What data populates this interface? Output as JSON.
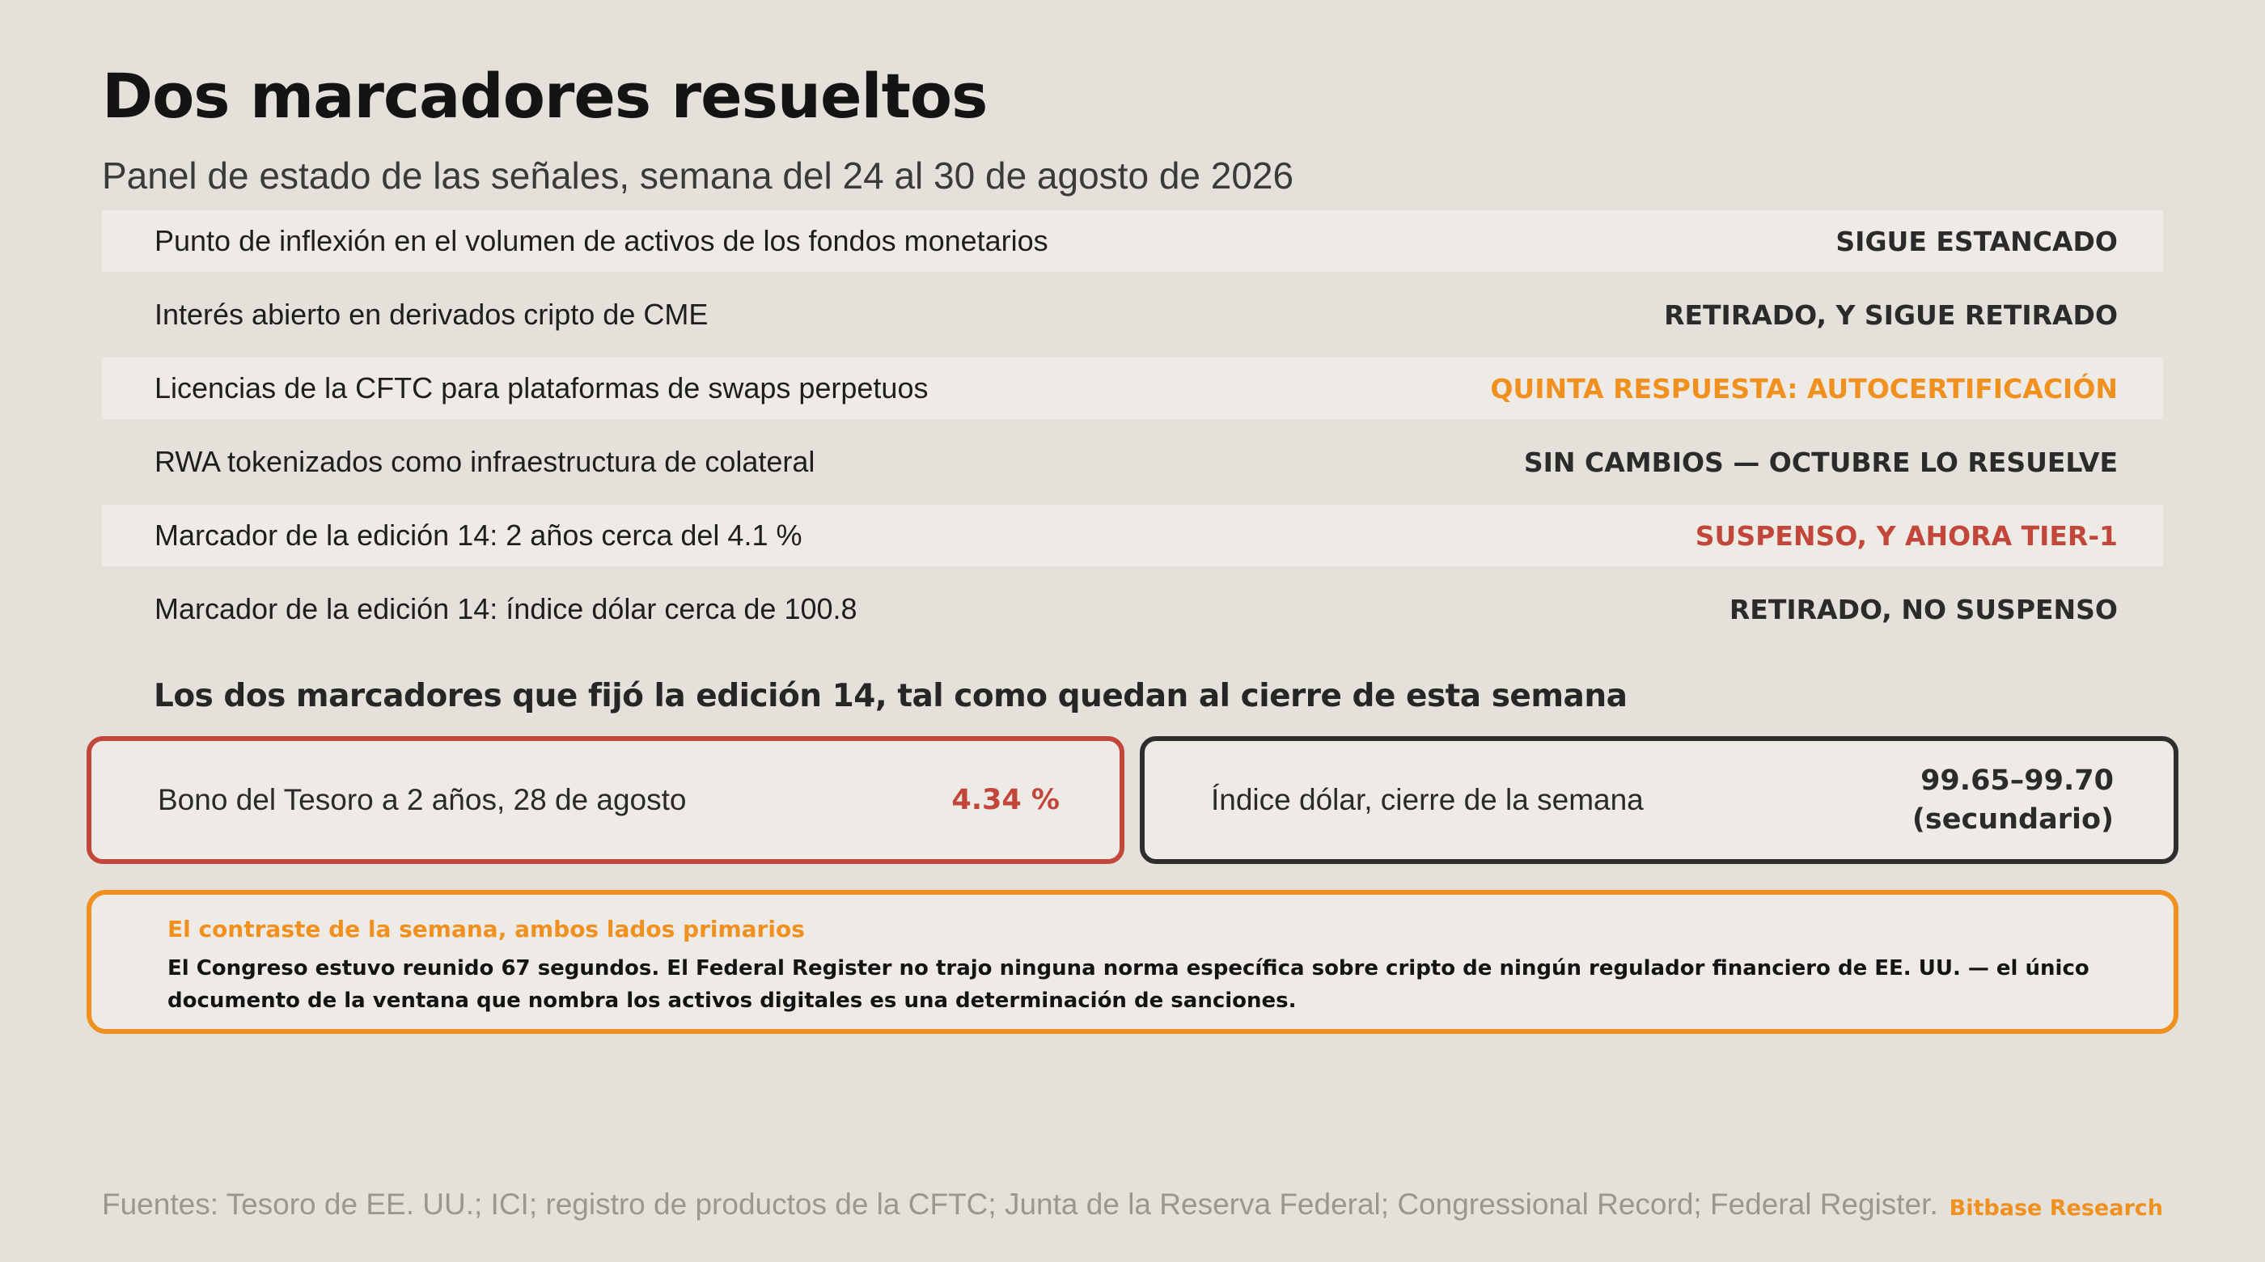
{
  "header": {
    "title": "Dos marcadores resueltos",
    "subtitle": "Panel de estado de las señales, semana del 24 al 30 de agosto de 2026"
  },
  "rows": [
    {
      "label": "Punto de inflexión en el volumen de activos de los fondos monetarios",
      "status": "SIGUE ESTANCADO",
      "status_color": "#2b2b2b"
    },
    {
      "label": "Interés abierto en derivados cripto de CME",
      "status": "RETIRADO, Y SIGUE RETIRADO",
      "status_color": "#2b2b2b"
    },
    {
      "label": "Licencias de la CFTC para plataformas de swaps perpetuos",
      "status": "QUINTA RESPUESTA: AUTOCERTIFICACIÓN",
      "status_color": "#f0901e"
    },
    {
      "label": "RWA tokenizados como infraestructura de colateral",
      "status": "SIN CAMBIOS — OCTUBRE LO RESUELVE",
      "status_color": "#2b2b2b"
    },
    {
      "label": "Marcador de la edición 14: 2 años cerca del 4.1 %",
      "status": "SUSPENSO, Y AHORA TIER-1",
      "status_color": "#c2473a"
    },
    {
      "label": "Marcador de la edición 14: índice dólar cerca de 100.8",
      "status": "RETIRADO, NO SUSPENSO",
      "status_color": "#2b2b2b"
    }
  ],
  "section": {
    "heading": "Los dos marcadores que fijó la edición 14, tal como quedan al cierre de esta semana"
  },
  "cards": {
    "left": {
      "label": "Bono del Tesoro a 2 años, 28 de agosto",
      "value": "4.34 %",
      "border_color": "#c2473a"
    },
    "right": {
      "label": "Índice dólar, cierre de la semana",
      "value_line1": "99.65–99.70",
      "value_line2": "(secundario)",
      "border_color": "#2e2e2e"
    }
  },
  "callout": {
    "heading": "El contraste de la semana, ambos lados primarios",
    "body": "El Congreso estuvo reunido 67 segundos. El Federal Register no trajo ninguna norma específica sobre cripto de ningún regulador financiero de EE. UU. — el único documento de la ventana que nombra los activos digitales es una determinación de sanciones.",
    "border_color": "#f0901e"
  },
  "footer": {
    "sources": "Fuentes: Tesoro de EE. UU.; ICI; registro de productos de la CFTC; Junta de la Reserva Federal; Congressional Record; Federal Register.",
    "brand": "Bitbase Research"
  }
}
